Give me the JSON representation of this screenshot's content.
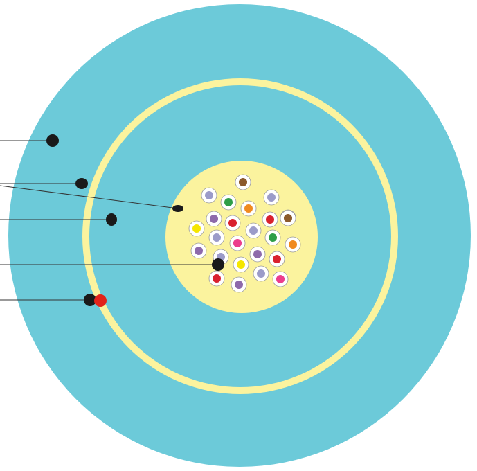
{
  "colors": {
    "background": "#ffffff",
    "outer_jacket": "#6ccad9",
    "ring": "#fbf39e",
    "inner_area": "#6ccad9",
    "core": "#fbf39e",
    "fiber_cladding": "#ffffff",
    "fiber_outline": "#999999",
    "marker": "#1a1a1a",
    "leader_line": "#333333",
    "ripcord": "#e2231a"
  },
  "fiber_colors": {
    "brown": "#8b5a2b",
    "violet": "#8e6aab",
    "slate": "#9b9bc9",
    "green": "#2e9e48",
    "orange": "#f08a1f",
    "yellow": "#f5e600",
    "red": "#d9212e",
    "rose": "#ec3d8c"
  },
  "fibers": [
    "brown",
    "slate",
    "green",
    "slate",
    "orange",
    "slate",
    "violet",
    "red",
    "red",
    "brown",
    "yellow",
    "slate",
    "slate",
    "rose",
    "green",
    "orange",
    "violet",
    "slate",
    "violet",
    "red",
    "yellow",
    "slate",
    "red",
    "rose",
    "violet"
  ],
  "callouts": [
    {
      "name": "callout-outer-jacket",
      "target": "outer-jacket"
    },
    {
      "name": "callout-ring",
      "target": "ring"
    },
    {
      "name": "callout-core",
      "target": "core"
    },
    {
      "name": "callout-inner-area",
      "target": "inner-area"
    },
    {
      "name": "callout-fiber",
      "target": "fiber"
    },
    {
      "name": "callout-ripcord",
      "target": "ripcord"
    }
  ]
}
